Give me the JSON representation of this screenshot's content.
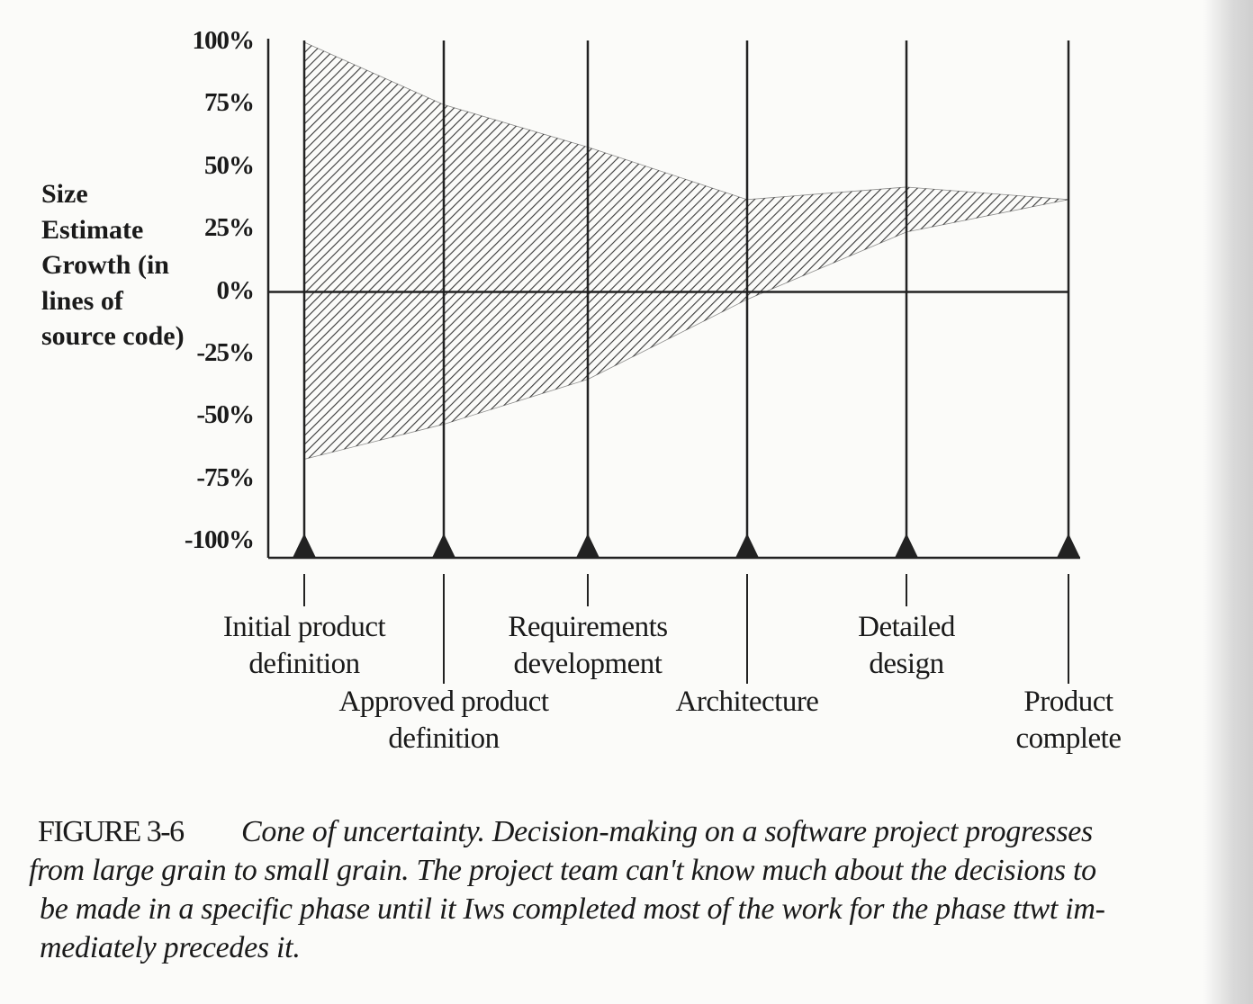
{
  "chart_data": {
    "type": "band",
    "y_label": "Size Estimate Growth (in lines of source code)",
    "categories": [
      "Initial product definition",
      "Approved product definition",
      "Requirements development",
      "Architecture",
      "Detailed design",
      "Product complete"
    ],
    "series": [
      {
        "color": "#222222",
        "values": [
          100,
          75,
          58,
          37,
          42,
          37
        ]
      },
      {
        "color": "#222222",
        "values": [
          -67,
          -53,
          -35,
          -3,
          24,
          37
        ]
      }
    ],
    "ylim": [
      -100,
      100
    ],
    "yticks": [
      {
        "value": 100,
        "label": "100%"
      },
      {
        "value": 75,
        "label": "75%"
      },
      {
        "value": 50,
        "label": "50%"
      },
      {
        "value": 25,
        "label": "25%"
      },
      {
        "value": 0,
        "label": "0%"
      },
      {
        "value": -25,
        "label": "-25%"
      },
      {
        "value": -50,
        "label": "-50%"
      },
      {
        "value": -75,
        "label": "-75%"
      },
      {
        "value": -100,
        "label": "-100%"
      }
    ]
  },
  "caption": {
    "label": "FIGURE 3-6",
    "lines": [
      "Cone of uncertainty. Decision-making on a software project progresses",
      "from large grain to small grain. The project team can't know much about the decisions to",
      "be made in a specific phase until it Iws completed most of the work for the phase ttwt im-",
      "mediately precedes it."
    ]
  }
}
